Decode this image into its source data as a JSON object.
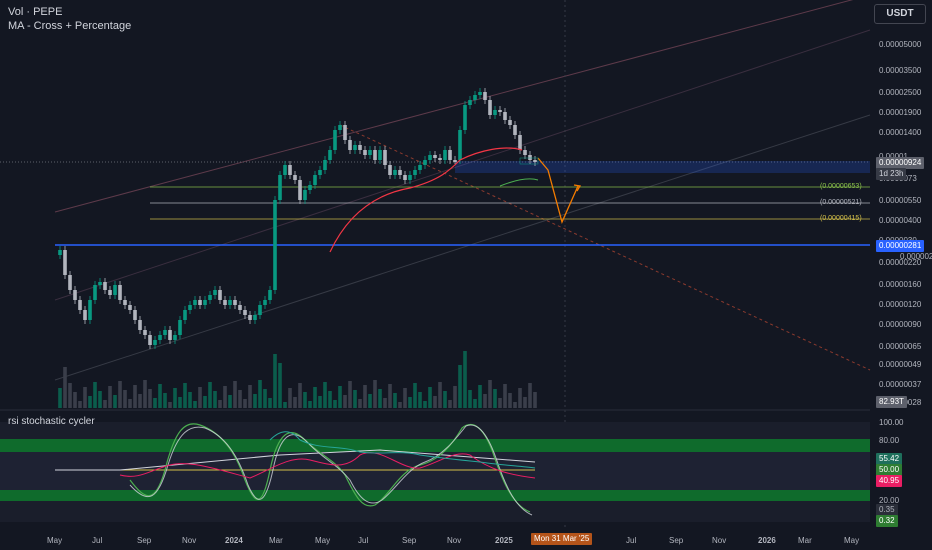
{
  "legend": {
    "line1": "Vol · PEPE",
    "line2": "MA - Cross + Percentage"
  },
  "currency_button": "USDT",
  "price_axis": [
    "0.00005000",
    "0.00003500",
    "0.00002500",
    "0.00001900",
    "0.00001400",
    "0.00000550",
    "0.00000400",
    "0.00000220",
    "0.00000160",
    "0.00000120",
    "0.00000090",
    "0.00000065",
    "0.00000049",
    "0.00000037",
    "0.00000028"
  ],
  "price_axis_partial": [
    "0.00001",
    "0.0000073",
    "0.0000030",
    "0.0000028"
  ],
  "current_price": "0.00000924",
  "countdown": "1d 23h",
  "hline_label": "0.00000281",
  "volume_label": "82.93T",
  "fib_labels": [
    "(0.00000653)",
    "(0.00000521)",
    "(0.00000415)"
  ],
  "oscillator": {
    "title": "rsi stochastic cycler",
    "axis": [
      "100.00",
      "80.00",
      "20.00"
    ],
    "badges": [
      {
        "text": "55.42",
        "bg": "#1e6f5c",
        "color": "#ffffff"
      },
      {
        "text": "50.00",
        "bg": "#2e7d32",
        "color": "#ffffff"
      },
      {
        "text": "40.95",
        "bg": "#e91e63",
        "color": "#ffffff"
      },
      {
        "text": "0.35",
        "bg": "#2a2e39",
        "color": "#b2b5be"
      },
      {
        "text": "0.32",
        "bg": "#2e7d32",
        "color": "#ffffff"
      }
    ]
  },
  "time_axis": [
    "May",
    "Jul",
    "Sep",
    "Nov",
    "2024",
    "Mar",
    "May",
    "Jul",
    "Sep",
    "Nov",
    "2025",
    "Jul",
    "Sep",
    "Nov",
    "2026",
    "Mar",
    "May"
  ],
  "crosshair_label": "Mon 31 Mar '25",
  "colors": {
    "background": "#131722",
    "up": "#089981",
    "up_bright": "#26a69a",
    "down": "#b2b5be",
    "blue_line": "#2962ff",
    "crosshair_bg": "#b4541a",
    "projection": "#f57c00",
    "ma": "#f23645"
  }
}
